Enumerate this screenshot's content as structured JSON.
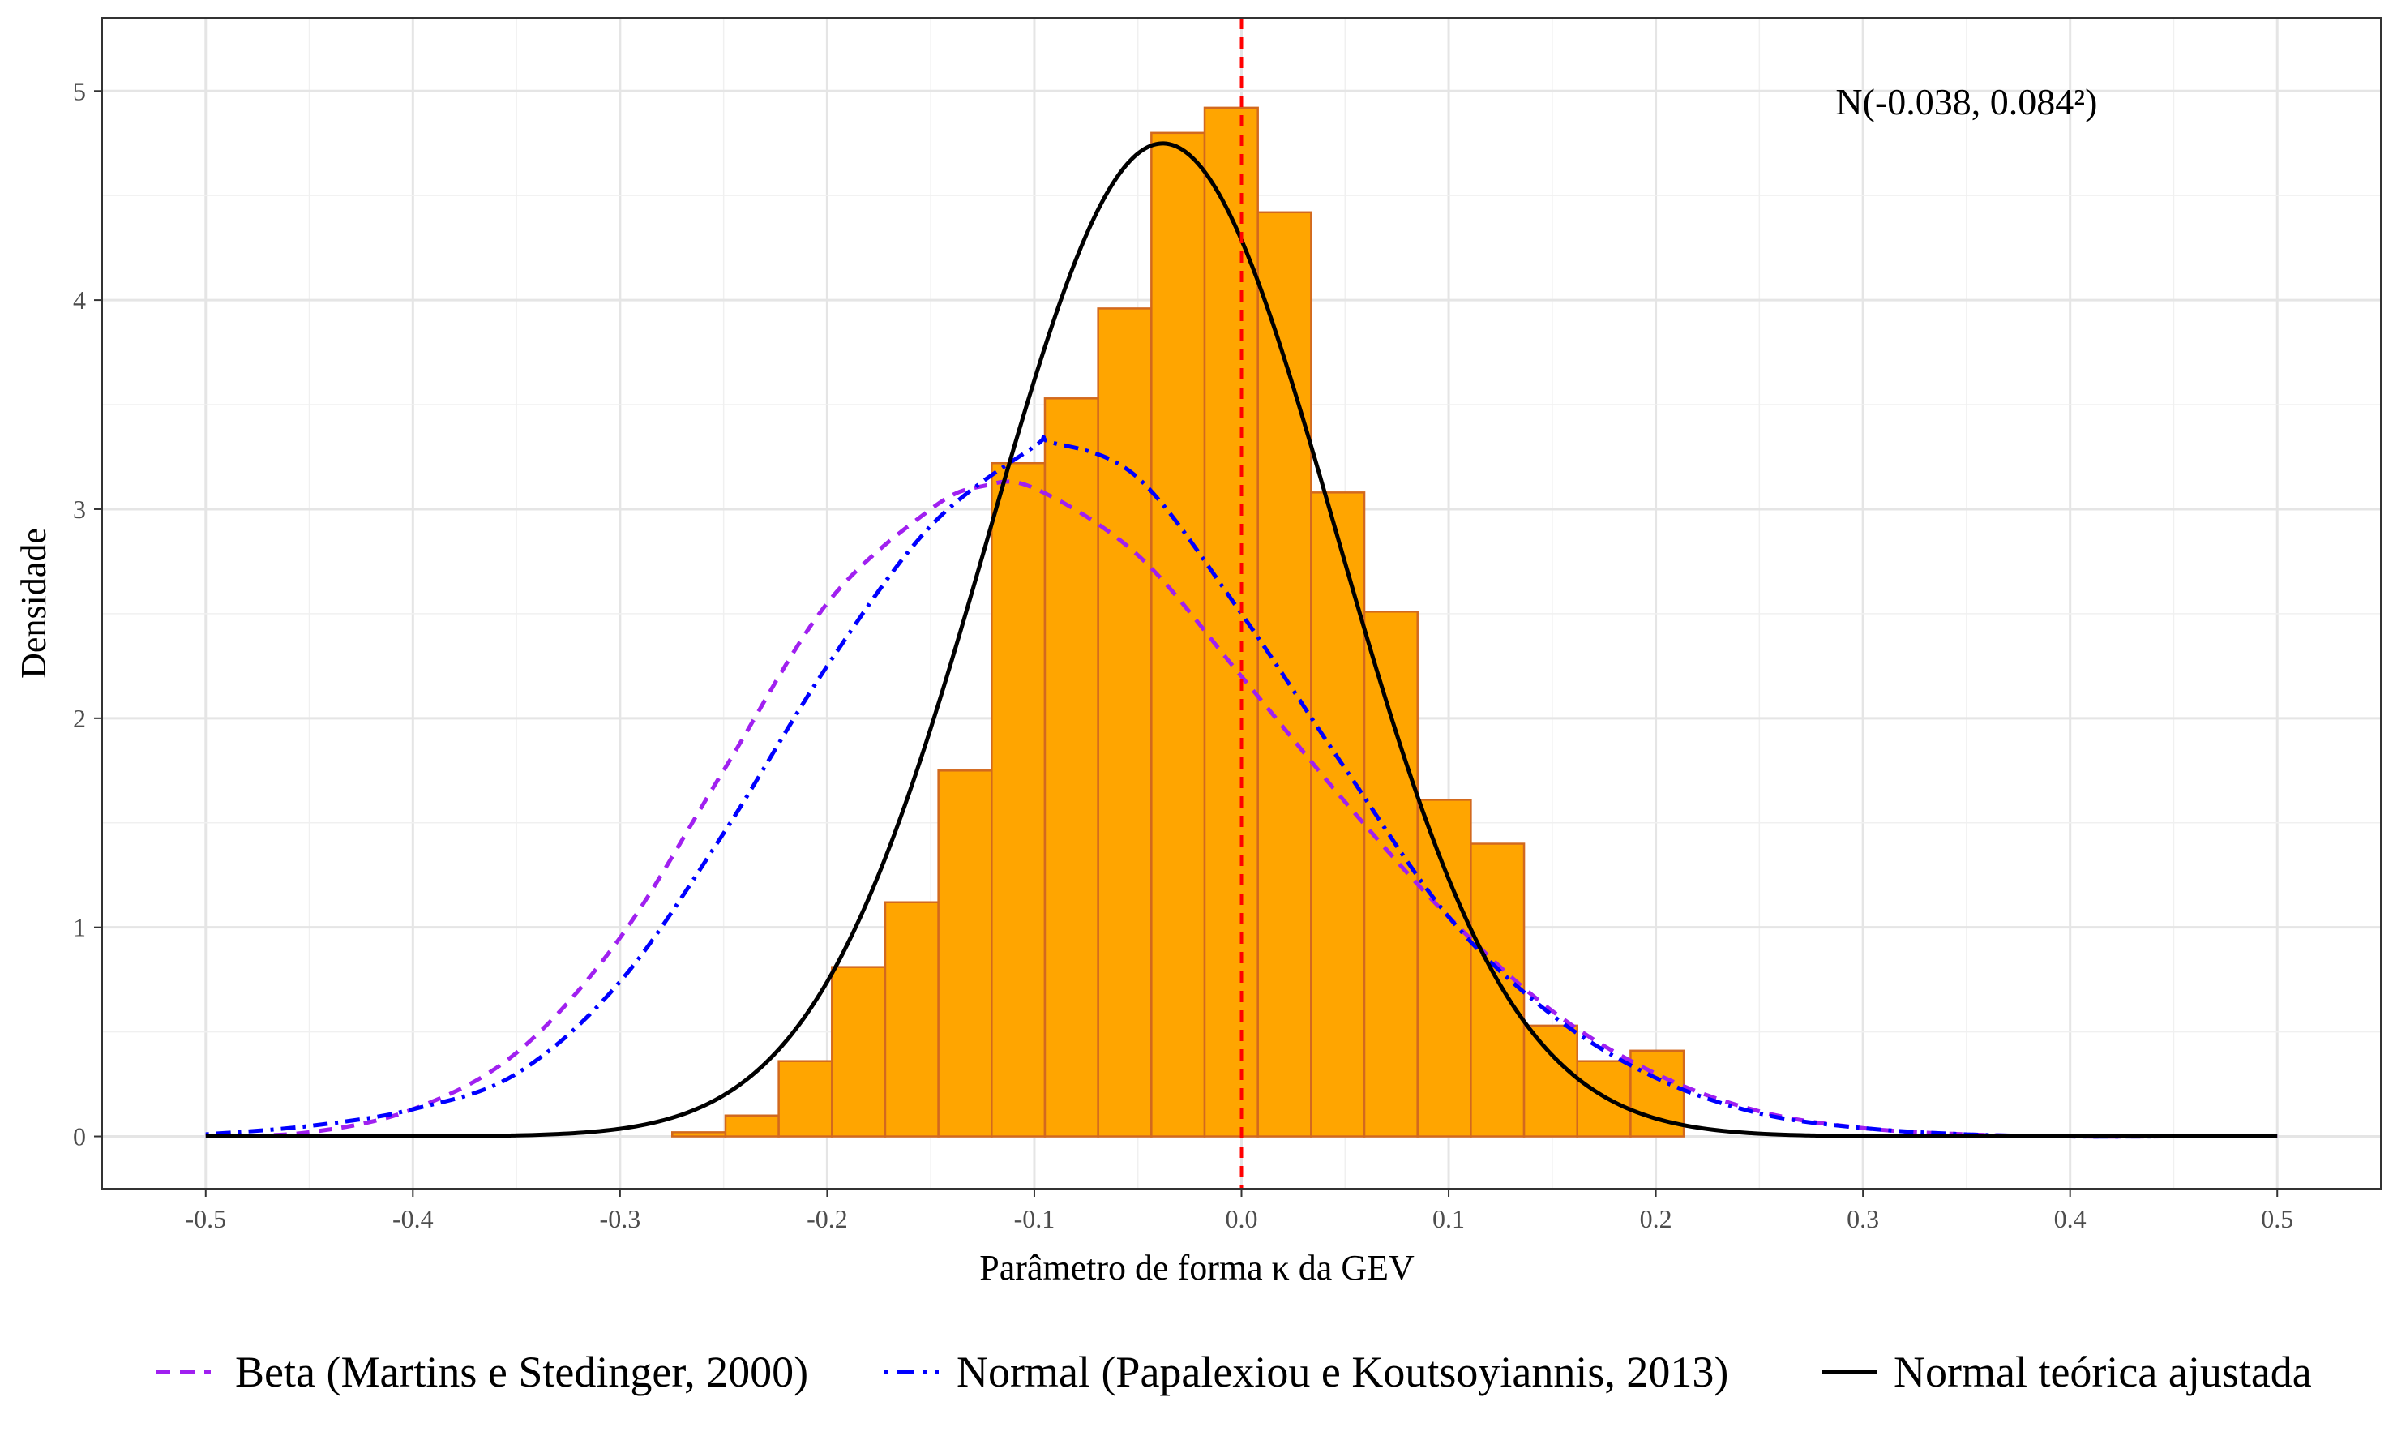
{
  "chart_data": {
    "type": "bar",
    "title": "",
    "xlabel": "Parâmetro de forma κ da GEV",
    "ylabel": "Densidade",
    "xlim": [
      -0.55,
      0.55
    ],
    "ylim": [
      -0.25,
      5.35
    ],
    "grid": true,
    "x_ticks": [
      -0.5,
      -0.4,
      -0.3,
      -0.2,
      -0.1,
      0.0,
      0.1,
      0.2,
      0.3,
      0.4,
      0.5
    ],
    "x_tick_labels": [
      "-0.5",
      "-0.4",
      "-0.3",
      "-0.2",
      "-0.1",
      "0.0",
      "0.1",
      "0.2",
      "0.3",
      "0.4",
      "0.5"
    ],
    "y_ticks": [
      0,
      1,
      2,
      3,
      4,
      5
    ],
    "y_tick_labels": [
      "0",
      "1",
      "2",
      "3",
      "4",
      "5"
    ],
    "histogram": {
      "bin_width": 0.0257,
      "bin_starts": [
        -0.3005,
        -0.2748,
        -0.2491,
        -0.2234,
        -0.1977,
        -0.172,
        -0.1463,
        -0.1206,
        -0.0949,
        -0.0692,
        -0.0435,
        -0.0178,
        0.0079,
        0.0336,
        0.0593,
        0.085,
        0.1107,
        0.1364,
        0.1621,
        0.1878
      ],
      "densities": [
        0.0,
        0.02,
        0.1,
        0.36,
        0.81,
        1.12,
        1.75,
        3.22,
        3.53,
        3.96,
        4.8,
        4.92,
        4.42,
        3.08,
        2.51,
        1.61,
        1.4,
        0.53,
        0.36,
        0.41
      ],
      "fill": "#FFA500",
      "stroke": "#D2691E"
    },
    "reference_line": {
      "x": 0.0,
      "color": "#FF0000",
      "style": "dashed"
    },
    "series": [
      {
        "name": "Beta (Martins e Stedinger, 2000)",
        "color": "#A020F0",
        "style": "dashed",
        "x": [
          -0.5,
          -0.45,
          -0.4,
          -0.35,
          -0.3,
          -0.25,
          -0.2,
          -0.15,
          -0.125,
          -0.1,
          -0.05,
          0.0,
          0.05,
          0.1,
          0.15,
          0.2,
          0.25,
          0.3,
          0.35,
          0.4,
          0.45,
          0.5
        ],
        "values": [
          0.0,
          0.02,
          0.13,
          0.4,
          0.95,
          1.75,
          2.55,
          3.0,
          3.11,
          3.1,
          2.78,
          2.2,
          1.6,
          1.05,
          0.6,
          0.3,
          0.12,
          0.04,
          0.01,
          0.0,
          0.0,
          0.0
        ]
      },
      {
        "name": "Normal (Papalexiou e Koutsoyiannis, 2013)",
        "color": "#0000FF",
        "style": "dotdash",
        "x": [
          -0.5,
          -0.45,
          -0.4,
          -0.35,
          -0.3,
          -0.25,
          -0.2,
          -0.15,
          -0.1,
          -0.092,
          -0.05,
          0.0,
          0.05,
          0.1,
          0.15,
          0.2,
          0.25,
          0.3,
          0.35,
          0.4,
          0.45,
          0.5
        ],
        "values": [
          0.01,
          0.05,
          0.13,
          0.3,
          0.74,
          1.45,
          2.25,
          2.92,
          3.3,
          3.32,
          3.15,
          2.5,
          1.76,
          1.05,
          0.58,
          0.28,
          0.11,
          0.04,
          0.01,
          0.0,
          0.0,
          0.0
        ]
      },
      {
        "name": "Normal teórica ajustada",
        "color": "#000000",
        "style": "solid",
        "mean": -0.038,
        "sd": 0.084
      }
    ],
    "annotations": [
      {
        "text": "N(-0.038, 0.084²)",
        "x": 0.35,
        "y": 4.95
      }
    ],
    "legend_position": "bottom"
  }
}
